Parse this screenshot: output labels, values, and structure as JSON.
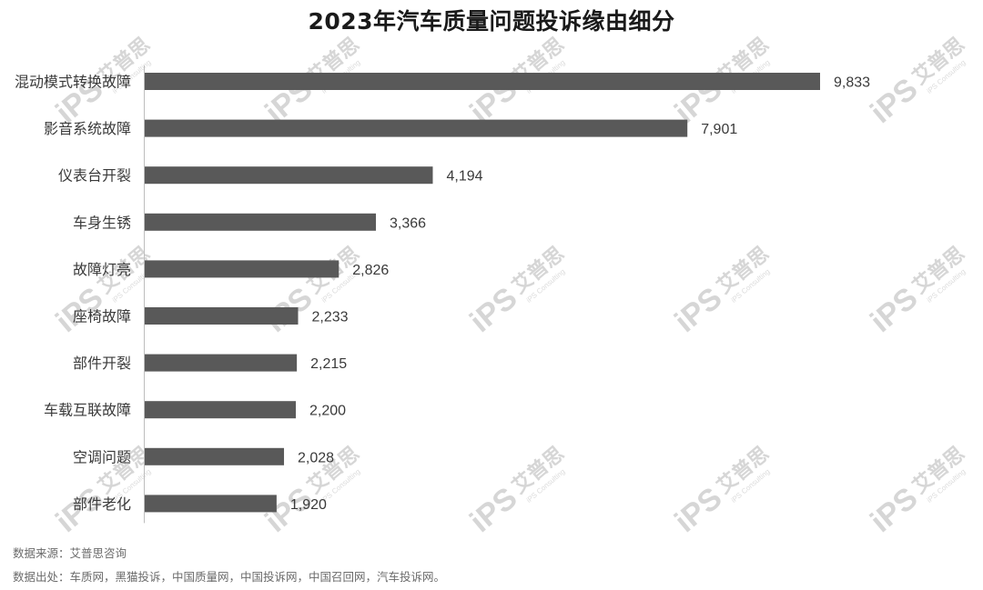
{
  "chart_data": {
    "type": "bar",
    "orientation": "horizontal",
    "title": "2023年汽车质量问题投诉缘由细分",
    "categories": [
      "混动模式转换故障",
      "影音系统故障",
      "仪表台开裂",
      "车身生锈",
      "故障灯亮",
      "座椅故障",
      "部件开裂",
      "车载互联故障",
      "空调问题",
      "部件老化"
    ],
    "values": [
      9833,
      7901,
      4194,
      3366,
      2826,
      2233,
      2215,
      2200,
      2028,
      1920
    ],
    "value_labels": [
      "9,833",
      "7,901",
      "4,194",
      "3,366",
      "2,826",
      "2,233",
      "2,215",
      "2,200",
      "2,028",
      "1,920"
    ],
    "xlim": [
      0,
      9833
    ],
    "bar_color": "#595959",
    "grid": false,
    "legend": "none"
  },
  "footnotes": {
    "source": "数据来源：艾普思咨询",
    "origin": "数据出处：车质网，黑猫投诉，中国质量网，中国投诉网，中国召回网，汽车投诉网。"
  },
  "watermark": {
    "logo": "iPS",
    "brand": "艾普思",
    "sub": "iPS Consulting"
  }
}
